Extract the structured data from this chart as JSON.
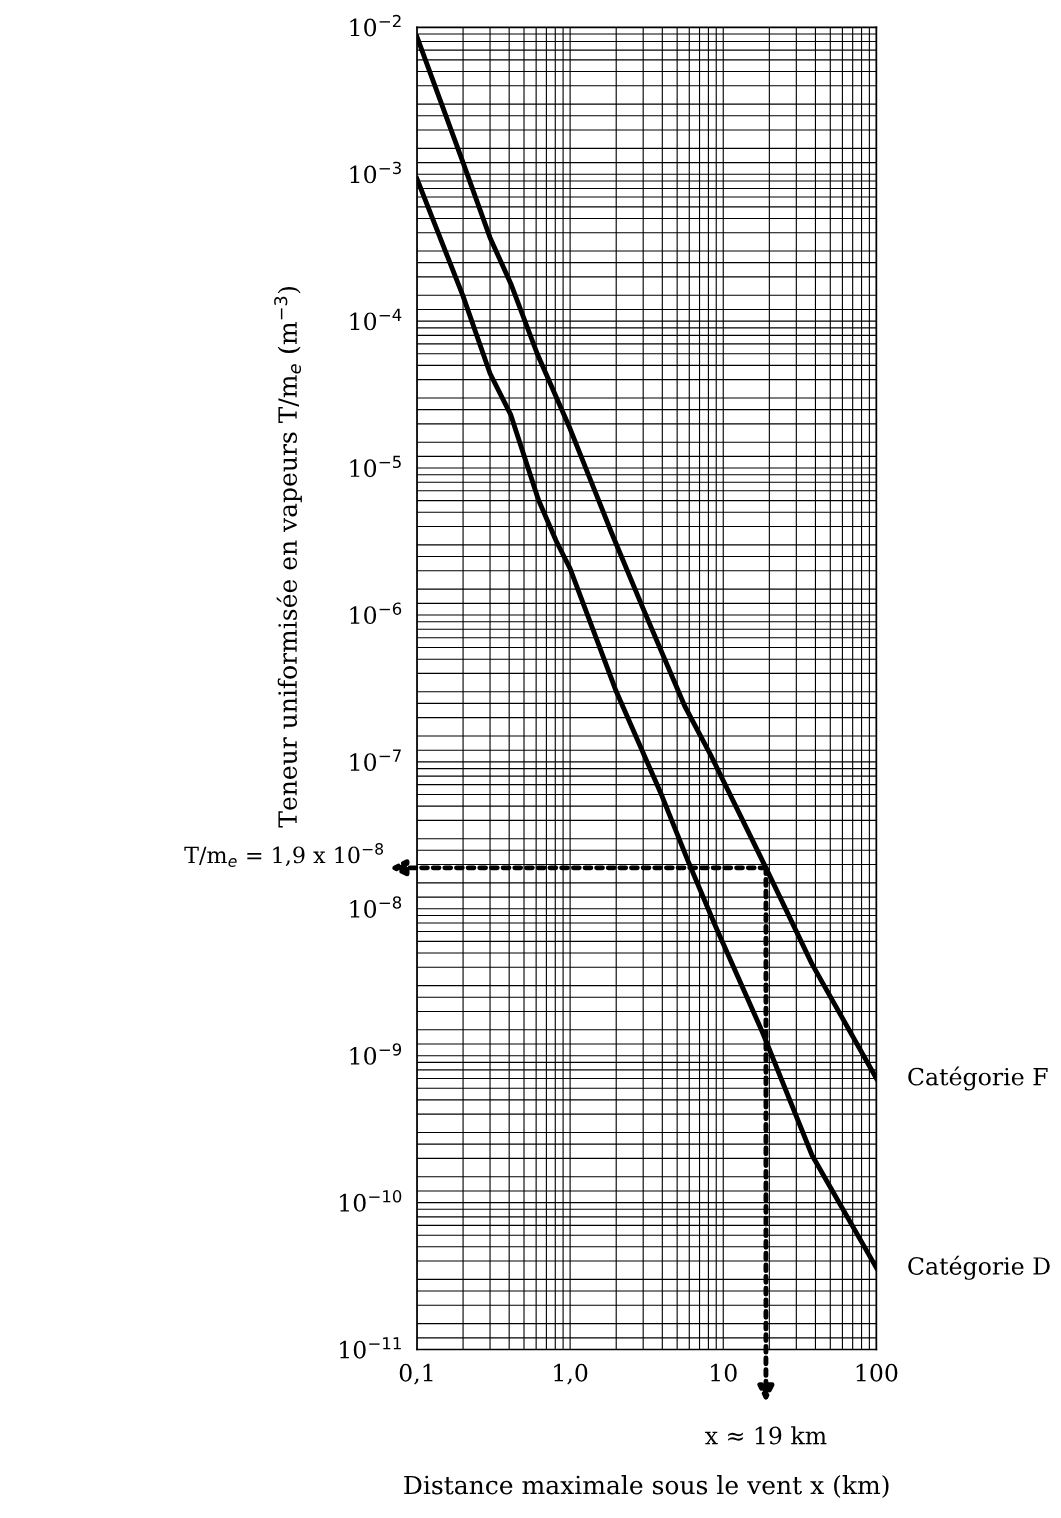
{
  "chart_data": {
    "type": "line",
    "xlabel": "Distance maximale sous le vent x (km)",
    "ylabel": "Teneur uniformisée en vapeurs T/m$_{e}$ (m$^{−3}$)",
    "log": "xy",
    "grid": true,
    "legend": false,
    "marker": "none",
    "line_style": "solid",
    "xlim": [
      0.1,
      100
    ],
    "ylim": [
      1e-11,
      0.01
    ],
    "xticks": [
      {
        "value": 0.1,
        "label": "0,1"
      },
      {
        "value": 1,
        "label": "1,0"
      },
      10,
      100
    ],
    "yticks": [
      {
        "value": 1e-11,
        "label": "10$^{−11}$"
      },
      {
        "value": 1e-10,
        "label": "10$^{−10}$"
      },
      {
        "value": 1e-09,
        "label": "10$^{−9}$"
      },
      {
        "value": 1e-08,
        "label": "10$^{−8}$"
      },
      {
        "value": 1e-07,
        "label": "10$^{−7}$"
      },
      {
        "value": 1e-06,
        "label": "10$^{−6}$"
      },
      {
        "value": 1e-05,
        "label": "10$^{−5}$"
      },
      {
        "value": 0.0001,
        "label": "10$^{−4}$"
      },
      {
        "value": 0.001,
        "label": "10$^{−3}$"
      },
      {
        "value": 0.01,
        "label": "10$^{−2}$"
      }
    ],
    "series": [
      {
        "name": "Catégorie F",
        "color": "#000000",
        "x": [
          0.1,
          0.2,
          0.3,
          0.41,
          0.61,
          1.0,
          1.87,
          2.97,
          5.6,
          8.4,
          19,
          38,
          100
        ],
        "values": [
          0.0086,
          0.0012,
          0.00037,
          0.00018,
          6e-05,
          1.85e-05,
          3.6e-06,
          1.13e-06,
          2.4e-07,
          1.08e-07,
          1.9e-08,
          4.2e-09,
          7e-10
        ]
      },
      {
        "name": "Catégorie D",
        "color": "#000000",
        "x": [
          0.1,
          0.2,
          0.3,
          0.41,
          0.62,
          0.81,
          1.0,
          1.98,
          3.97,
          5.9,
          8.9,
          18,
          38,
          100
        ],
        "values": [
          0.00093,
          0.000148,
          4.4e-05,
          2.3e-05,
          6.1e-06,
          3.2e-06,
          2.07e-06,
          3.1e-07,
          5.9e-08,
          2.1e-08,
          7.6e-09,
          1.45e-09,
          2.1e-10,
          3.6e-11
        ]
      }
    ],
    "annotations": [
      {
        "text": "T/m$_{e}$ = 1,9 x 10$^{−8}$",
        "x": 19,
        "y": 1.9e-08
      },
      {
        "text": "x ≈ 19 km",
        "x": 19,
        "y": 1.9e-08
      }
    ]
  }
}
